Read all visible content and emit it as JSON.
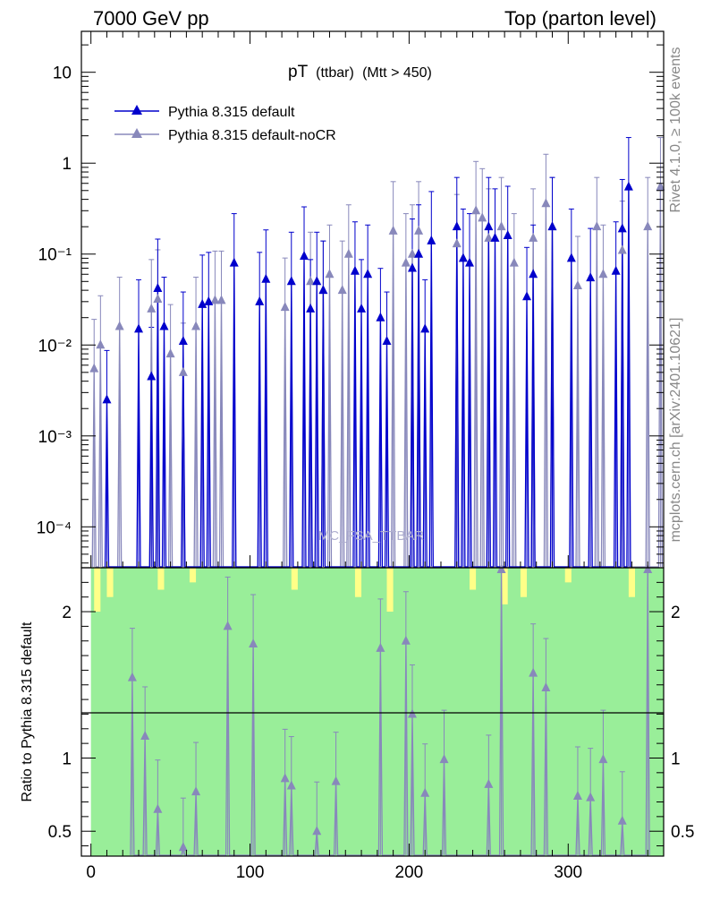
{
  "header": {
    "left": "7000 GeV pp",
    "right": "Top (parton level)"
  },
  "side_labels": {
    "rivet": "Rivet 4.1.0, ≥ 100k events",
    "mcplots": "mcplots.cern.ch [arXiv:2401.10621]"
  },
  "colors": {
    "series1": "#0000cc",
    "series2": "#8888bb",
    "band_green": "#99ee99",
    "band_yellow": "#ffff88"
  },
  "chart_data": {
    "type": "line",
    "title": "pT",
    "title_sub1": "(ttbar)",
    "title_sub2": "(Mtt > 450)",
    "watermark": "MC_FSA_TTBAR",
    "xlim": [
      -6,
      360
    ],
    "main_ylim_log10": [
      -4.45,
      1.45
    ],
    "xlabel": "",
    "ylabel_ratio": "Ratio to Pythia 8.315 default",
    "ratio_ylim": [
      0.33,
      2.3
    ],
    "x_ticks": [
      0,
      100,
      200,
      300
    ],
    "x_tick_labels": [
      "0",
      "100",
      "200",
      "300"
    ],
    "main_y_tick_labels": [
      "10",
      "1",
      "10⁻¹",
      "10⁻²",
      "10⁻³",
      "10⁻⁴"
    ],
    "main_y_tick_values": [
      1,
      0,
      -1,
      -2,
      -3,
      -4
    ],
    "ratio_y_ticks": [
      0.5,
      1,
      2
    ],
    "ratio_y_tick_labels": [
      "0.5",
      "1",
      "2"
    ],
    "legend": [
      {
        "name": "Pythia 8.315 default"
      },
      {
        "name": "Pythia 8.315 default-noCR"
      }
    ],
    "series": [
      {
        "name": "Pythia 8.315 default",
        "x": [
          10,
          30,
          38,
          42,
          46,
          58,
          70,
          74,
          90,
          106,
          110,
          126,
          134,
          138,
          142,
          146,
          166,
          170,
          174,
          182,
          186,
          202,
          206,
          210,
          214,
          230,
          234,
          238,
          250,
          254,
          262,
          274,
          278,
          290,
          302,
          314,
          330,
          334,
          338
        ],
        "y": [
          0.0025,
          0.015,
          0.0045,
          0.042,
          0.016,
          0.011,
          0.028,
          0.03,
          0.08,
          0.03,
          0.053,
          0.05,
          0.095,
          0.025,
          0.05,
          0.04,
          0.065,
          0.025,
          0.06,
          0.02,
          0.011,
          0.07,
          0.1,
          0.015,
          0.14,
          0.2,
          0.09,
          0.08,
          0.2,
          0.15,
          0.16,
          0.034,
          0.06,
          0.2,
          0.09,
          0.055,
          0.065,
          0.19,
          0.55
        ]
      },
      {
        "name": "Pythia 8.315 default-noCR",
        "x": [
          2,
          6,
          18,
          38,
          42,
          50,
          58,
          66,
          78,
          82,
          122,
          138,
          146,
          150,
          158,
          162,
          190,
          198,
          202,
          206,
          230,
          242,
          246,
          250,
          258,
          266,
          278,
          286,
          290,
          306,
          318,
          322,
          334,
          350,
          358
        ],
        "y": [
          0.0055,
          0.01,
          0.016,
          0.025,
          0.032,
          0.008,
          0.005,
          0.016,
          0.031,
          0.031,
          0.026,
          0.05,
          0.04,
          0.06,
          0.04,
          0.1,
          0.18,
          0.08,
          0.1,
          0.18,
          0.13,
          0.3,
          0.25,
          0.15,
          0.2,
          0.08,
          0.15,
          0.36,
          0.2,
          0.045,
          0.2,
          0.06,
          0.11,
          0.2,
          0.55
        ]
      },
      {
        "name": "Ratio default-noCR / default",
        "x": [
          26,
          34,
          42,
          58,
          66,
          86,
          102,
          122,
          126,
          142,
          154,
          182,
          198,
          202,
          210,
          222,
          250,
          258,
          278,
          286,
          306,
          314,
          322,
          334,
          350
        ],
        "y": [
          1.55,
          1.15,
          0.65,
          0.39,
          0.77,
          1.9,
          1.78,
          0.86,
          0.81,
          0.5,
          0.84,
          1.75,
          1.8,
          1.3,
          0.76,
          0.99,
          0.82,
          2.3,
          1.58,
          1.48,
          0.74,
          0.73,
          0.99,
          0.57,
          2.3
        ]
      }
    ]
  }
}
